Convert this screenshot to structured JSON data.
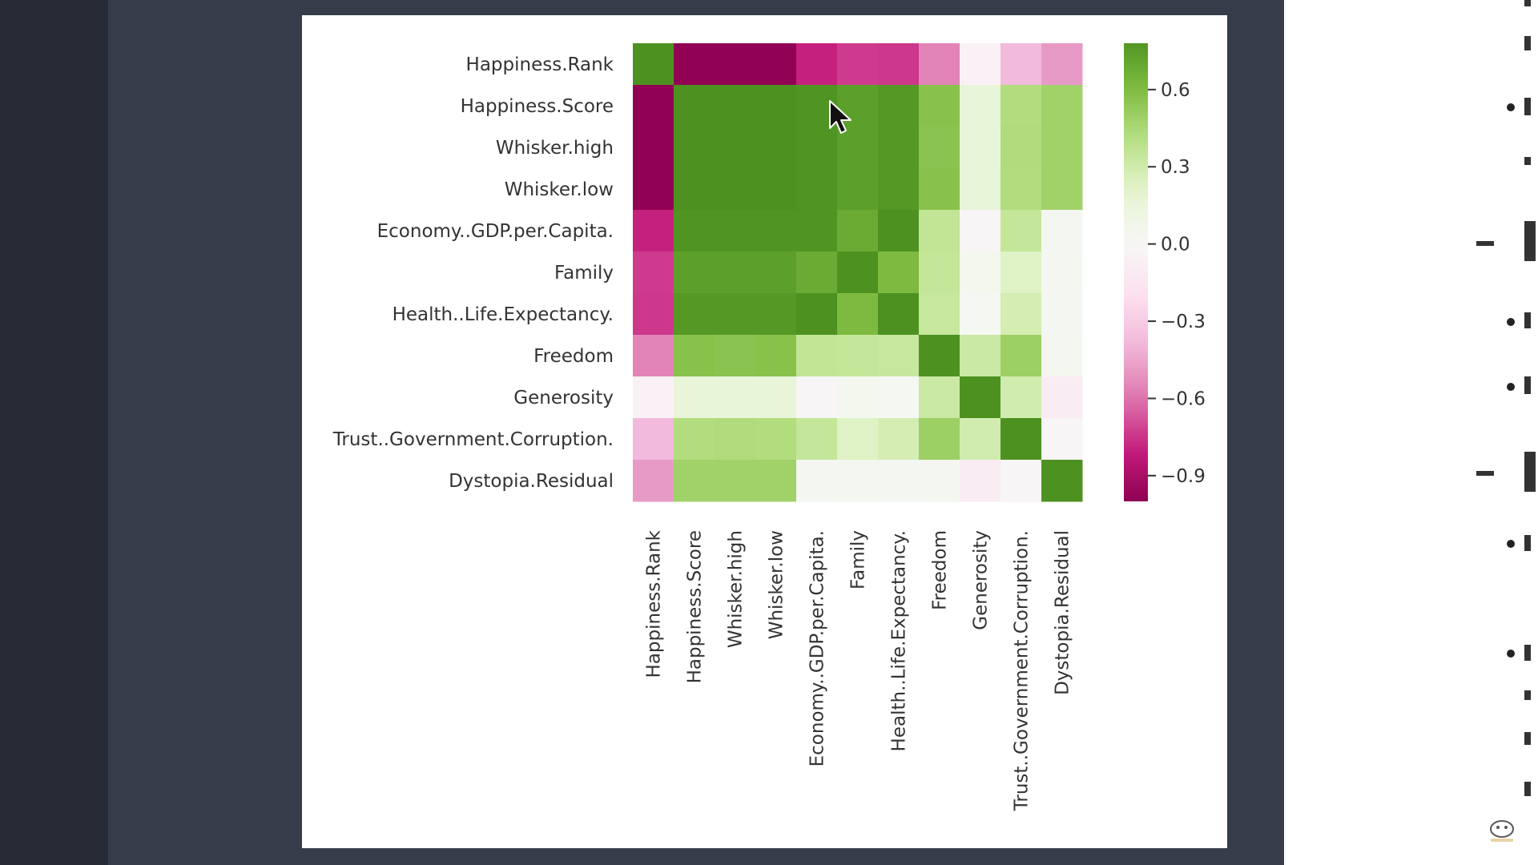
{
  "chart_data": {
    "type": "heatmap",
    "title": "",
    "xlabel": "",
    "ylabel": "",
    "row_labels": [
      "Happiness.Rank",
      "Happiness.Score",
      "Whisker.high",
      "Whisker.low",
      "Economy..GDP.per.Capita.",
      "Family",
      "Health..Life.Expectancy.",
      "Freedom",
      "Generosity",
      "Trust..Government.Corruption.",
      "Dystopia.Residual"
    ],
    "col_labels": [
      "Happiness.Rank",
      "Happiness.Score",
      "Whisker.high",
      "Whisker.low",
      "Economy..GDP.per.Capita.",
      "Family",
      "Health..Life.Expectancy.",
      "Freedom",
      "Generosity",
      "Trust..Government.Corruption.",
      "Dystopia.Residual"
    ],
    "values": [
      [
        1.0,
        -0.99,
        -0.99,
        -0.99,
        -0.79,
        -0.73,
        -0.74,
        -0.56,
        -0.05,
        -0.38,
        -0.49
      ],
      [
        -0.99,
        1.0,
        1.0,
        1.0,
        0.79,
        0.74,
        0.77,
        0.57,
        0.16,
        0.42,
        0.48
      ],
      [
        -0.99,
        1.0,
        1.0,
        1.0,
        0.79,
        0.74,
        0.77,
        0.56,
        0.16,
        0.43,
        0.48
      ],
      [
        -0.99,
        1.0,
        1.0,
        1.0,
        0.79,
        0.74,
        0.77,
        0.57,
        0.16,
        0.42,
        0.48
      ],
      [
        -0.79,
        0.79,
        0.79,
        0.79,
        0.79,
        0.68,
        0.84,
        0.36,
        -0.02,
        0.35,
        0.03
      ],
      [
        -0.73,
        0.74,
        0.74,
        0.74,
        0.68,
        0.8,
        0.61,
        0.35,
        0.05,
        0.23,
        0.04
      ],
      [
        -0.74,
        0.77,
        0.77,
        0.77,
        0.84,
        0.61,
        0.8,
        0.34,
        0.02,
        0.28,
        0.03
      ],
      [
        -0.56,
        0.57,
        0.56,
        0.57,
        0.36,
        0.35,
        0.34,
        0.8,
        0.32,
        0.5,
        0.04
      ],
      [
        -0.05,
        0.16,
        0.16,
        0.16,
        -0.02,
        0.05,
        0.02,
        0.32,
        0.8,
        0.29,
        -0.1
      ],
      [
        -0.38,
        0.42,
        0.43,
        0.42,
        0.35,
        0.23,
        0.28,
        0.5,
        0.29,
        0.8,
        -0.02
      ],
      [
        -0.49,
        0.48,
        0.48,
        0.48,
        0.03,
        0.04,
        0.03,
        0.04,
        -0.1,
        -0.02,
        0.8
      ]
    ],
    "colormap": "PiYG",
    "vmin": -1.0,
    "vmax": 0.78,
    "colorbar_ticks": [
      0.6,
      0.3,
      0.0,
      -0.3,
      -0.6,
      -0.9
    ],
    "colorbar_tick_labels": [
      "0.6",
      "0.3",
      "0.0",
      "−0.3",
      "−0.6",
      "−0.9"
    ],
    "colorbar_position": "right"
  },
  "colors": {
    "neg_extreme": "#8e0152",
    "neg_mid": "#de77ae",
    "neutral": "#f7f7f7",
    "pos_mid": "#b8e186",
    "pos_extreme": "#4d9221"
  },
  "cursor": {
    "icon": "arrow-pointer-icon"
  }
}
